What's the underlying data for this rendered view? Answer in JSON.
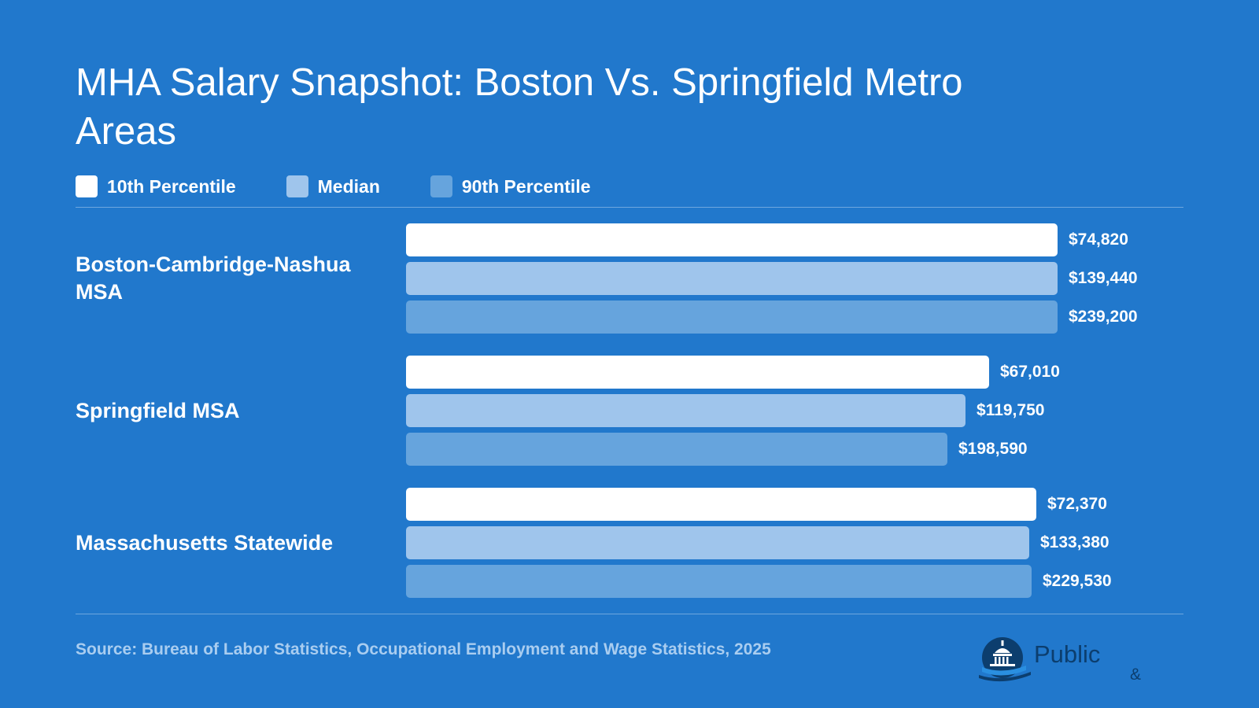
{
  "chart_data": {
    "type": "bar",
    "orientation": "horizontal",
    "title": "MHA Salary Snapshot: Boston Vs. Springfield Metro Areas",
    "xlabel": "",
    "ylabel": "",
    "categories": [
      "Boston-Cambridge-Nashua MSA",
      "Springfield MSA",
      "Massachusetts Statewide"
    ],
    "series": [
      {
        "name": "10th Percentile",
        "color": "#ffffff",
        "values": [
          74820,
          67010,
          72370
        ],
        "labels": [
          "$74,820",
          "$67,010",
          "$72,370"
        ]
      },
      {
        "name": "Median",
        "color": "#9fc5ec",
        "values": [
          139440,
          119750,
          133380
        ],
        "labels": [
          "$139,440",
          "$119,750",
          "$133,380"
        ]
      },
      {
        "name": "90th Percentile",
        "color": "#66a4dd",
        "values": [
          239200,
          198590,
          229530
        ],
        "labels": [
          "$239,200",
          "$198,590",
          "$229,530"
        ]
      }
    ],
    "grid": false,
    "legend_position": "top-left"
  },
  "source": "Source: Bureau of Labor Statistics, Occupational Employment and Wage Statistics, 2025",
  "logo": {
    "word": "Public",
    "amp": "&",
    "icon": "capitol-dome-icon"
  },
  "colors": {
    "background": "#2178cc",
    "text": "#ffffff",
    "source_text": "#a9cdf0"
  }
}
